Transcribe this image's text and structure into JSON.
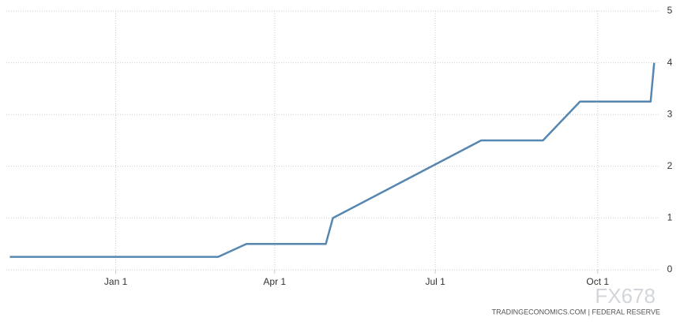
{
  "chart_data": {
    "type": "line",
    "x": [
      -60,
      58,
      74,
      119,
      123,
      207,
      242,
      263,
      303,
      305
    ],
    "series": [
      {
        "color": "#5687b1",
        "values": [
          0.25,
          0.25,
          0.5,
          0.5,
          1,
          2.5,
          2.5,
          3.25,
          3.25,
          4
        ]
      }
    ],
    "xlim": [
      -62,
      308
    ],
    "xticks": [
      {
        "value": 0,
        "label": "Jan 1"
      },
      {
        "value": 90,
        "label": "Apr 1"
      },
      {
        "value": 181,
        "label": "Jul 1"
      },
      {
        "value": 273,
        "label": "Oct 1"
      }
    ],
    "ylim": [
      0,
      5
    ],
    "yticks": [
      0,
      1,
      2,
      3,
      4,
      5
    ],
    "grid": true,
    "source": "TRADINGECONOMICS.COM  |  FEDERAL RESERVE",
    "watermark": "FX678"
  }
}
